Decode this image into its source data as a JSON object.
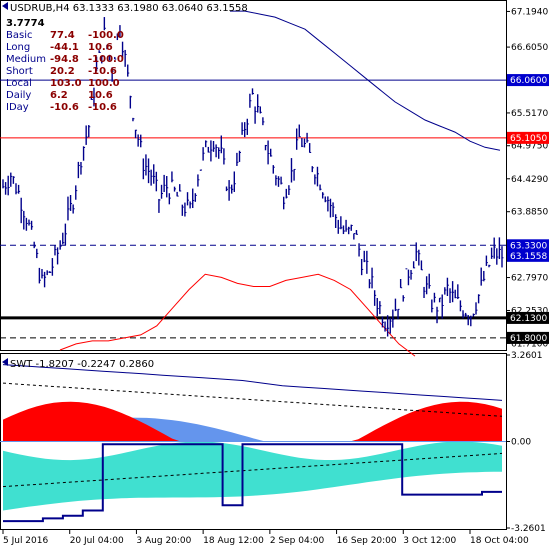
{
  "chart_header": {
    "symbol_line": "USDRUB,H4  63.1333 63.1980 63.0640 63.1558"
  },
  "indicator_panel": {
    "value": "3.7774",
    "rows": [
      {
        "label": "Basic",
        "a": "77.4",
        "b": "-100.0"
      },
      {
        "label": "Long",
        "a": "-44.1",
        "b": "10.6"
      },
      {
        "label": "Medium",
        "a": "-94.8",
        "b": "-100.0"
      },
      {
        "label": "Short",
        "a": "20.2",
        "b": "-10.6"
      },
      {
        "label": "Local",
        "a": "103.0",
        "b": "100.0"
      },
      {
        "label": "Daily",
        "a": "6.2",
        "b": "10.6"
      },
      {
        "label": "IDay",
        "a": "-10.6",
        "b": "-10.6"
      }
    ]
  },
  "swt_header": {
    "text": "SWT -1.8207 -0.2247 0.2860"
  },
  "colors": {
    "price": "#00008b",
    "red_line": "#ff0000",
    "label_red": "#8b0000",
    "blue_tag": "#0000cd",
    "black_tag": "#000000",
    "red_tag": "#ff0000",
    "dashed_level": "#00008b",
    "fill_red": "#ff0000",
    "fill_cyan": "#40e0d0",
    "fill_blue": "#6495ed"
  },
  "chart_data": {
    "type": "line",
    "price_axis": {
      "ticks": [
        "67.1940",
        "66.6050",
        "65.5170",
        "64.9750",
        "64.4290",
        "63.8850",
        "62.7970",
        "62.2530",
        "61.7100"
      ],
      "tick_values": [
        67.194,
        66.605,
        65.517,
        64.975,
        64.429,
        63.885,
        62.797,
        62.253,
        61.71
      ],
      "ylim": [
        61.6,
        67.35
      ]
    },
    "tags": [
      {
        "label": "66.0600",
        "value": 66.06,
        "color": "blue"
      },
      {
        "label": "65.1050",
        "value": 65.105,
        "color": "red"
      },
      {
        "label": "63.3300",
        "value": 63.33,
        "color": "blue"
      },
      {
        "label": "63.1558",
        "value": 63.1558,
        "color": "blue"
      },
      {
        "label": "62.1300",
        "value": 62.13,
        "color": "black"
      },
      {
        "label": "61.8000",
        "value": 61.8,
        "color": "black"
      }
    ],
    "levels": [
      {
        "value": 66.06,
        "style": "solid",
        "color": "blue"
      },
      {
        "value": 65.105,
        "style": "solid",
        "color": "red"
      },
      {
        "value": 63.33,
        "style": "dashed",
        "color": "blue"
      },
      {
        "value": 62.13,
        "style": "thick",
        "color": "black"
      },
      {
        "value": 61.8,
        "style": "dashed",
        "color": "black"
      }
    ],
    "x_labels": [
      "5 Jul 2016",
      "20 Jul 04:00",
      "3 Aug 20:00",
      "18 Aug 12:00",
      "2 Sep 04:00",
      "16 Sep 20:00",
      "3 Oct 12:00",
      "18 Oct 04:00"
    ],
    "close": [
      64.3,
      64.5,
      64.2,
      63.8,
      63.3,
      62.7,
      62.9,
      63.2,
      63.6,
      64.1,
      64.8,
      65.3,
      66.2,
      66.8,
      66.3,
      67.0,
      66.1,
      65.3,
      64.7,
      64.5,
      64.1,
      64.3,
      64.2,
      64.0,
      63.9,
      64.5,
      64.9,
      65.1,
      64.8,
      64.2,
      64.6,
      65.3,
      65.8,
      65.4,
      64.9,
      64.5,
      64.2,
      64.5,
      65.1,
      64.9,
      64.6,
      64.3,
      64.0,
      63.7,
      63.5,
      63.6,
      63.1,
      62.8,
      62.4,
      62.1,
      62.2,
      62.5,
      62.9,
      63.2,
      62.7,
      62.4,
      62.3,
      62.6,
      62.4,
      62.3,
      62.2,
      62.5,
      62.9,
      63.2,
      63.16
    ],
    "upper_band": [
      67.2,
      67.2,
      67.15,
      67.1,
      67.0,
      66.9,
      66.7,
      66.5,
      66.3,
      66.1,
      65.9,
      65.7,
      65.55,
      65.4,
      65.3,
      65.2,
      65.05,
      64.95,
      64.9
    ],
    "red_line": [
      61.6,
      61.7,
      61.75,
      61.75,
      61.8,
      61.85,
      62.0,
      62.3,
      62.6,
      62.85,
      62.8,
      62.7,
      62.65,
      62.65,
      62.75,
      62.8,
      62.85,
      62.75,
      62.6,
      62.3,
      62.0,
      61.7,
      61.5
    ],
    "swt": {
      "ylim": [
        -3.2601,
        3.2601
      ],
      "ticks": [
        "3.2601",
        "0.00",
        "-3.2601"
      ],
      "step_line": [
        -3.0,
        -3.0,
        -2.9,
        -2.8,
        -2.6,
        -0.1,
        -0.1,
        -0.1,
        -0.1,
        -0.1,
        -0.1,
        -2.4,
        -0.1,
        -0.1,
        -0.1,
        -0.1,
        -0.1,
        -0.1,
        -0.1,
        -0.1,
        -2.0,
        -2.0,
        -2.0,
        -2.0,
        -1.9,
        -1.9
      ],
      "upper_line": [
        2.9,
        2.85,
        2.8,
        2.75,
        2.7,
        2.65,
        2.6,
        2.55,
        2.5,
        2.45,
        2.4,
        2.35,
        2.3,
        2.2,
        2.1,
        2.05,
        2.0,
        1.95,
        1.9,
        1.85,
        1.8,
        1.75,
        1.7,
        1.65,
        1.6,
        1.55
      ],
      "upper_dashed": [
        2.2,
        2.15,
        2.1,
        2.05,
        2.0,
        1.95,
        1.9,
        1.85,
        1.8,
        1.75,
        1.7,
        1.65,
        1.6,
        1.55,
        1.5,
        1.45,
        1.4,
        1.35,
        1.3,
        1.25,
        1.2,
        1.15,
        1.1,
        1.05,
        1.0,
        0.95
      ]
    }
  }
}
